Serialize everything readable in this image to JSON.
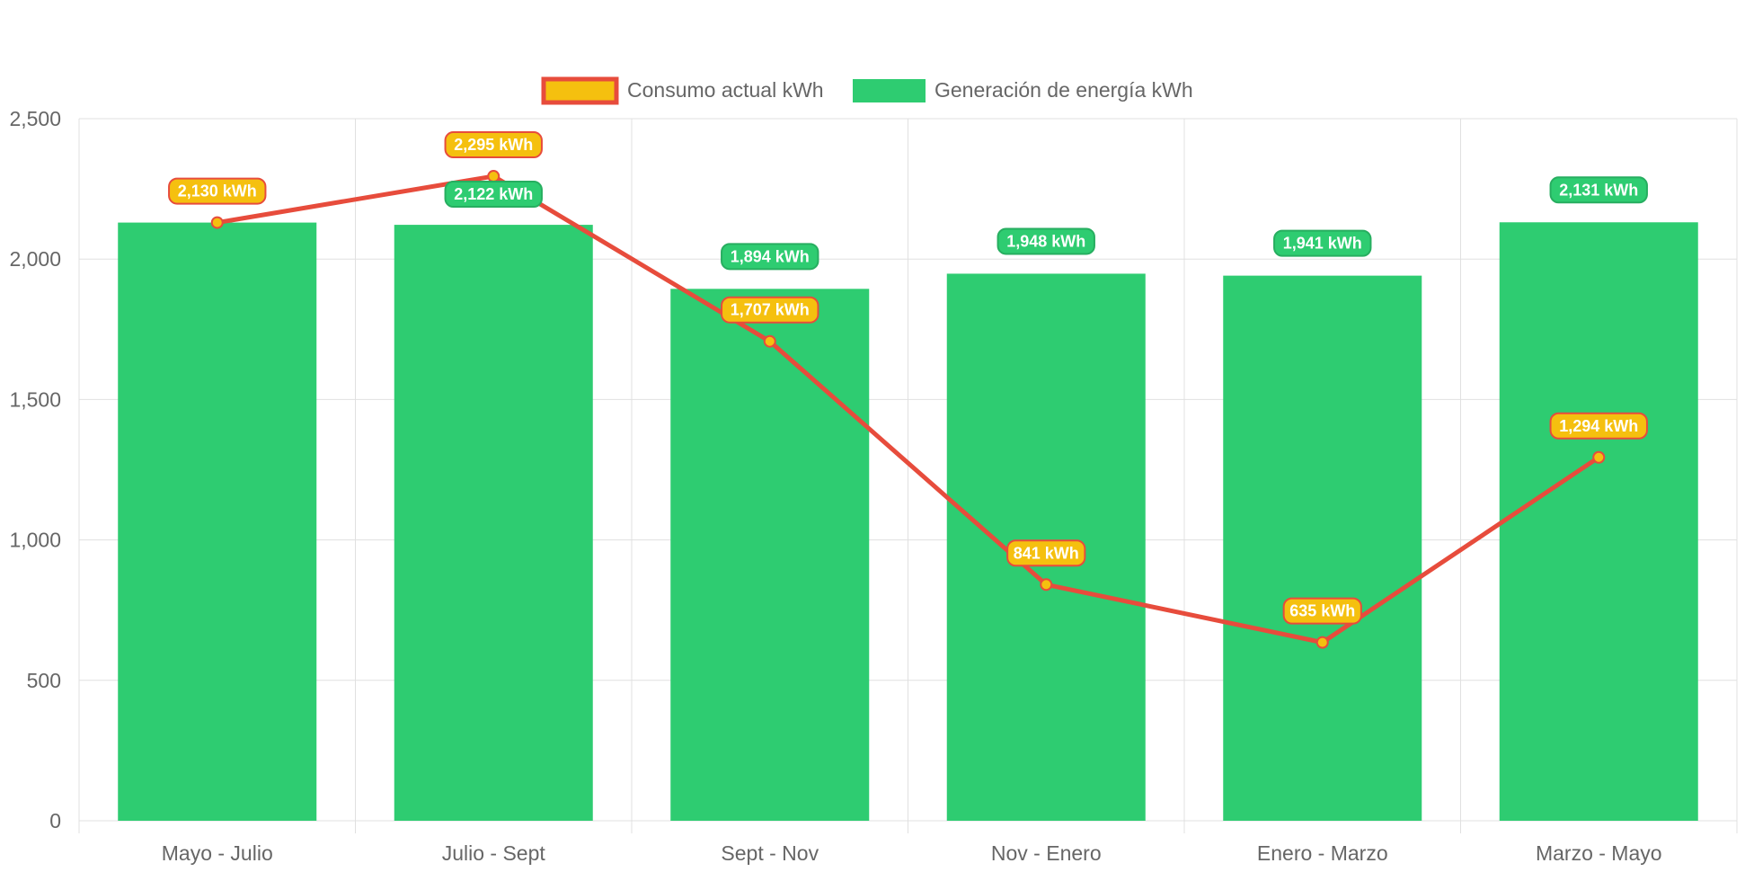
{
  "colors": {
    "consumption_fill": "#f5c00f",
    "consumption_line": "#e74c3c",
    "generation_fill": "#2ecc71",
    "generation_label_border": "#27ae60",
    "grid": "#e0e0e0",
    "text": "#666666"
  },
  "chart_data": {
    "type": "bar",
    "categories": [
      "Mayo - Julio",
      "Julio - Sept",
      "Sept - Nov",
      "Nov - Enero",
      "Enero - Marzo",
      "Marzo - Mayo"
    ],
    "series": [
      {
        "name": "Consumo actual kWh",
        "type": "line",
        "values": [
          2130,
          2295,
          1707,
          841,
          635,
          1294
        ],
        "labels": [
          "2,130 kWh",
          "2,295 kWh",
          "1,707 kWh",
          "841 kWh",
          "635 kWh",
          "1,294 kWh"
        ]
      },
      {
        "name": "Generación de energía kWh",
        "type": "bar",
        "values": [
          2130,
          2122,
          1894,
          1948,
          1941,
          2131
        ],
        "labels": [
          "",
          "2,122 kWh",
          "1,894 kWh",
          "1,948 kWh",
          "1,941 kWh",
          "2,131 kWh"
        ]
      }
    ],
    "ylim": [
      0,
      2500
    ],
    "yticks": [
      0,
      500,
      1000,
      1500,
      2000,
      2500
    ],
    "ytick_labels": [
      "0",
      "500",
      "1,000",
      "1,500",
      "2,000",
      "2,500"
    ],
    "grid": true,
    "legend_position": "top"
  }
}
